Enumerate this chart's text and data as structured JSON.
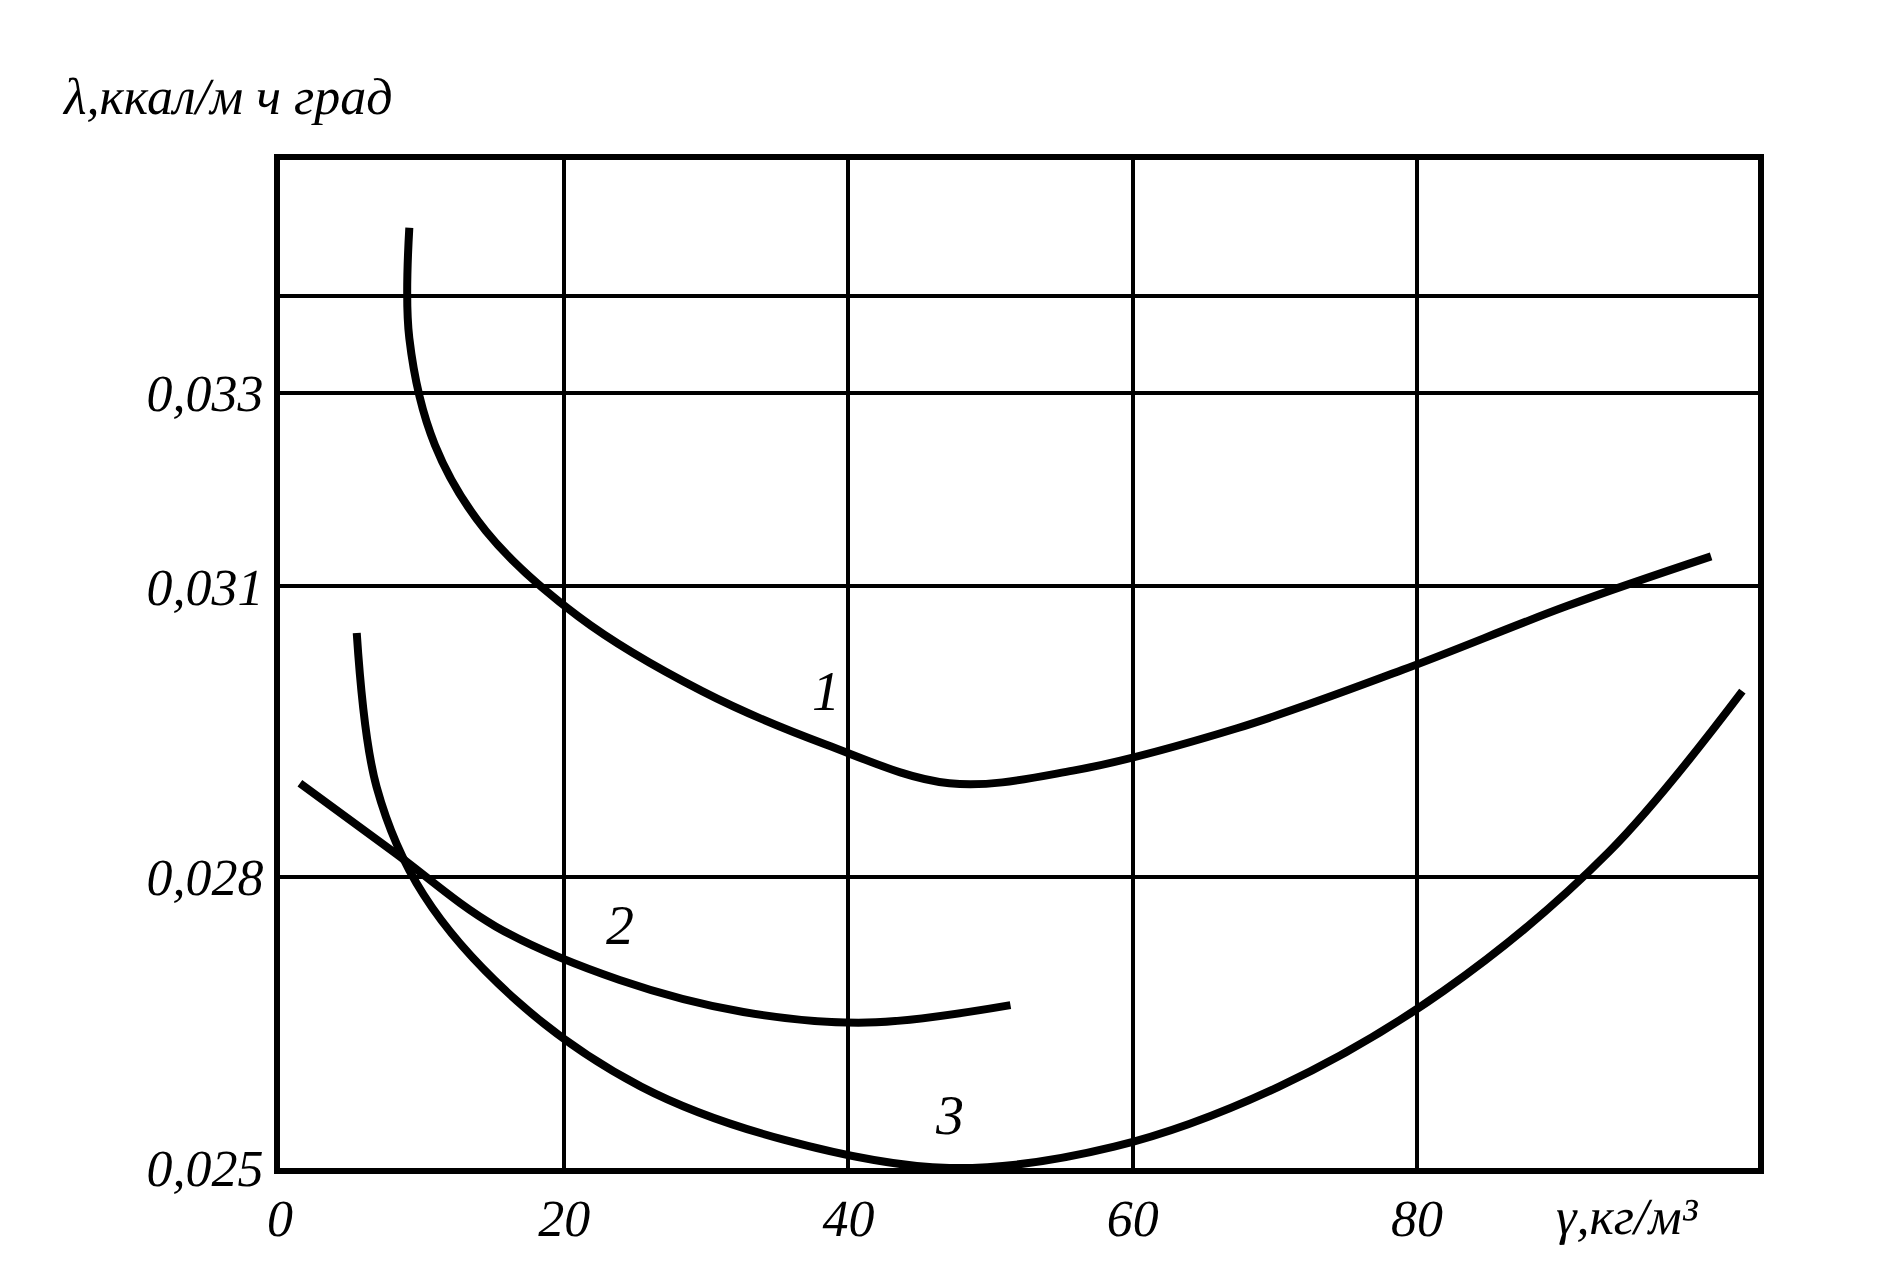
{
  "chart_data": {
    "type": "line",
    "xlabel": "γ,кг/м³",
    "ylabel": "λ,ккал/м ч град",
    "xlim": [
      0,
      104
    ],
    "xticks": [
      0,
      20,
      40,
      60,
      80
    ],
    "ylim": [
      0.025,
      0.0354
    ],
    "yticks": [
      {
        "value": 0.025,
        "label": "0,025"
      },
      {
        "value": 0.028,
        "label": "0,028"
      },
      {
        "value": 0.031,
        "label": "0,031"
      },
      {
        "value": 0.034,
        "label": null
      },
      {
        "value": 0.033,
        "label": "0,033"
      }
    ],
    "grid": true,
    "legend": false,
    "marker": "none",
    "line_style": "solid",
    "series": [
      {
        "name": "1",
        "color": "#000000",
        "x": [
          9.1,
          9.1,
          10.9,
          14.5,
          21.0,
          29.7,
          38.4,
          47.1,
          55.8,
          67.4,
          79.0,
          90.6,
          100.7
        ],
        "values": [
          0.0347,
          0.03356,
          0.03246,
          0.03157,
          0.03069,
          0.02992,
          0.02937,
          0.02897,
          0.0291,
          0.02954,
          0.03014,
          0.0308,
          0.03131
        ]
      },
      {
        "name": "2",
        "color": "#000000",
        "x": [
          1.4,
          8.0,
          15.2,
          23.9,
          32.6,
          41.3,
          51.4
        ],
        "values": [
          0.02897,
          0.02826,
          0.02749,
          0.02694,
          0.02661,
          0.0265,
          0.02668
        ]
      },
      {
        "name": "3",
        "color": "#000000",
        "x": [
          5.4,
          6.8,
          10.1,
          16.7,
          25.4,
          35.5,
          47.1,
          58.7,
          70.3,
          81.9,
          93.5,
          102.9
        ],
        "values": [
          0.03052,
          0.02893,
          0.02782,
          0.02672,
          0.02584,
          0.02529,
          0.025,
          0.02522,
          0.02584,
          0.02683,
          0.02826,
          0.02992
        ]
      }
    ]
  }
}
